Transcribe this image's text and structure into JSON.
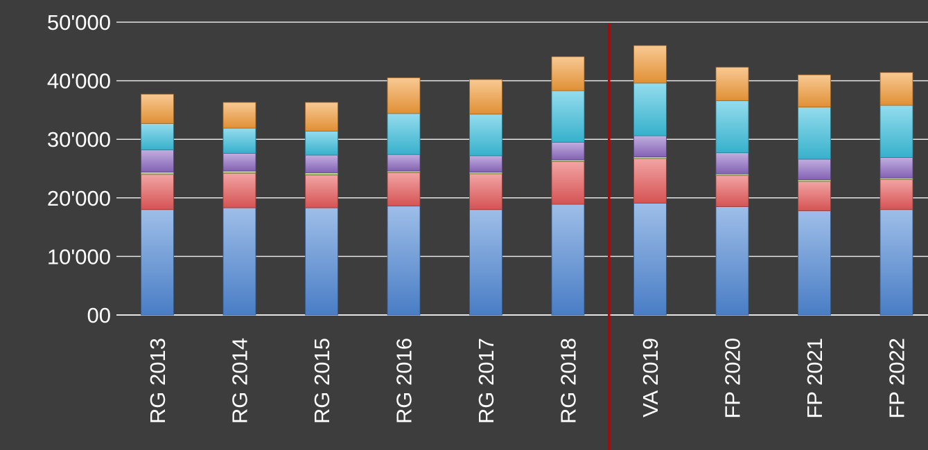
{
  "chart_data": {
    "type": "bar",
    "stacked": true,
    "categories": [
      "RG 2013",
      "RG 2014",
      "RG 2015",
      "RG 2016",
      "RG 2017",
      "RG 2018",
      "VA 2019",
      "FP 2020",
      "FP 2021",
      "FP 2022"
    ],
    "ytick_labels": [
      "00",
      "10'000",
      "20'000",
      "30'000",
      "40'000",
      "50'000"
    ],
    "ylim": [
      0,
      50000
    ],
    "grid": true,
    "legend": "none",
    "divider_after_category": "RG 2018",
    "divider_color": "#c00000",
    "background_color": "#3d3d3d",
    "series": [
      {
        "color": "#4f88d6",
        "values": [
          18000,
          18300,
          18300,
          18600,
          18000,
          18900,
          19100,
          18500,
          17800,
          18000
        ]
      },
      {
        "color": "#e85a5a",
        "values": [
          6000,
          5900,
          5600,
          5700,
          6100,
          7300,
          7600,
          5300,
          5000,
          5100
        ]
      },
      {
        "color": "#b0c470",
        "values": [
          400,
          400,
          400,
          300,
          300,
          300,
          300,
          300,
          300,
          300
        ]
      },
      {
        "color": "#8e6bc4",
        "values": [
          3800,
          3000,
          3000,
          2800,
          2800,
          3000,
          3600,
          3600,
          3500,
          3500
        ]
      },
      {
        "color": "#3cc0de",
        "values": [
          4500,
          4300,
          4100,
          7000,
          7100,
          8800,
          9000,
          8900,
          8900,
          8900
        ]
      },
      {
        "color": "#f39c3a",
        "values": [
          5000,
          4400,
          4900,
          6100,
          5900,
          5800,
          6400,
          5700,
          5500,
          5600
        ]
      }
    ]
  }
}
